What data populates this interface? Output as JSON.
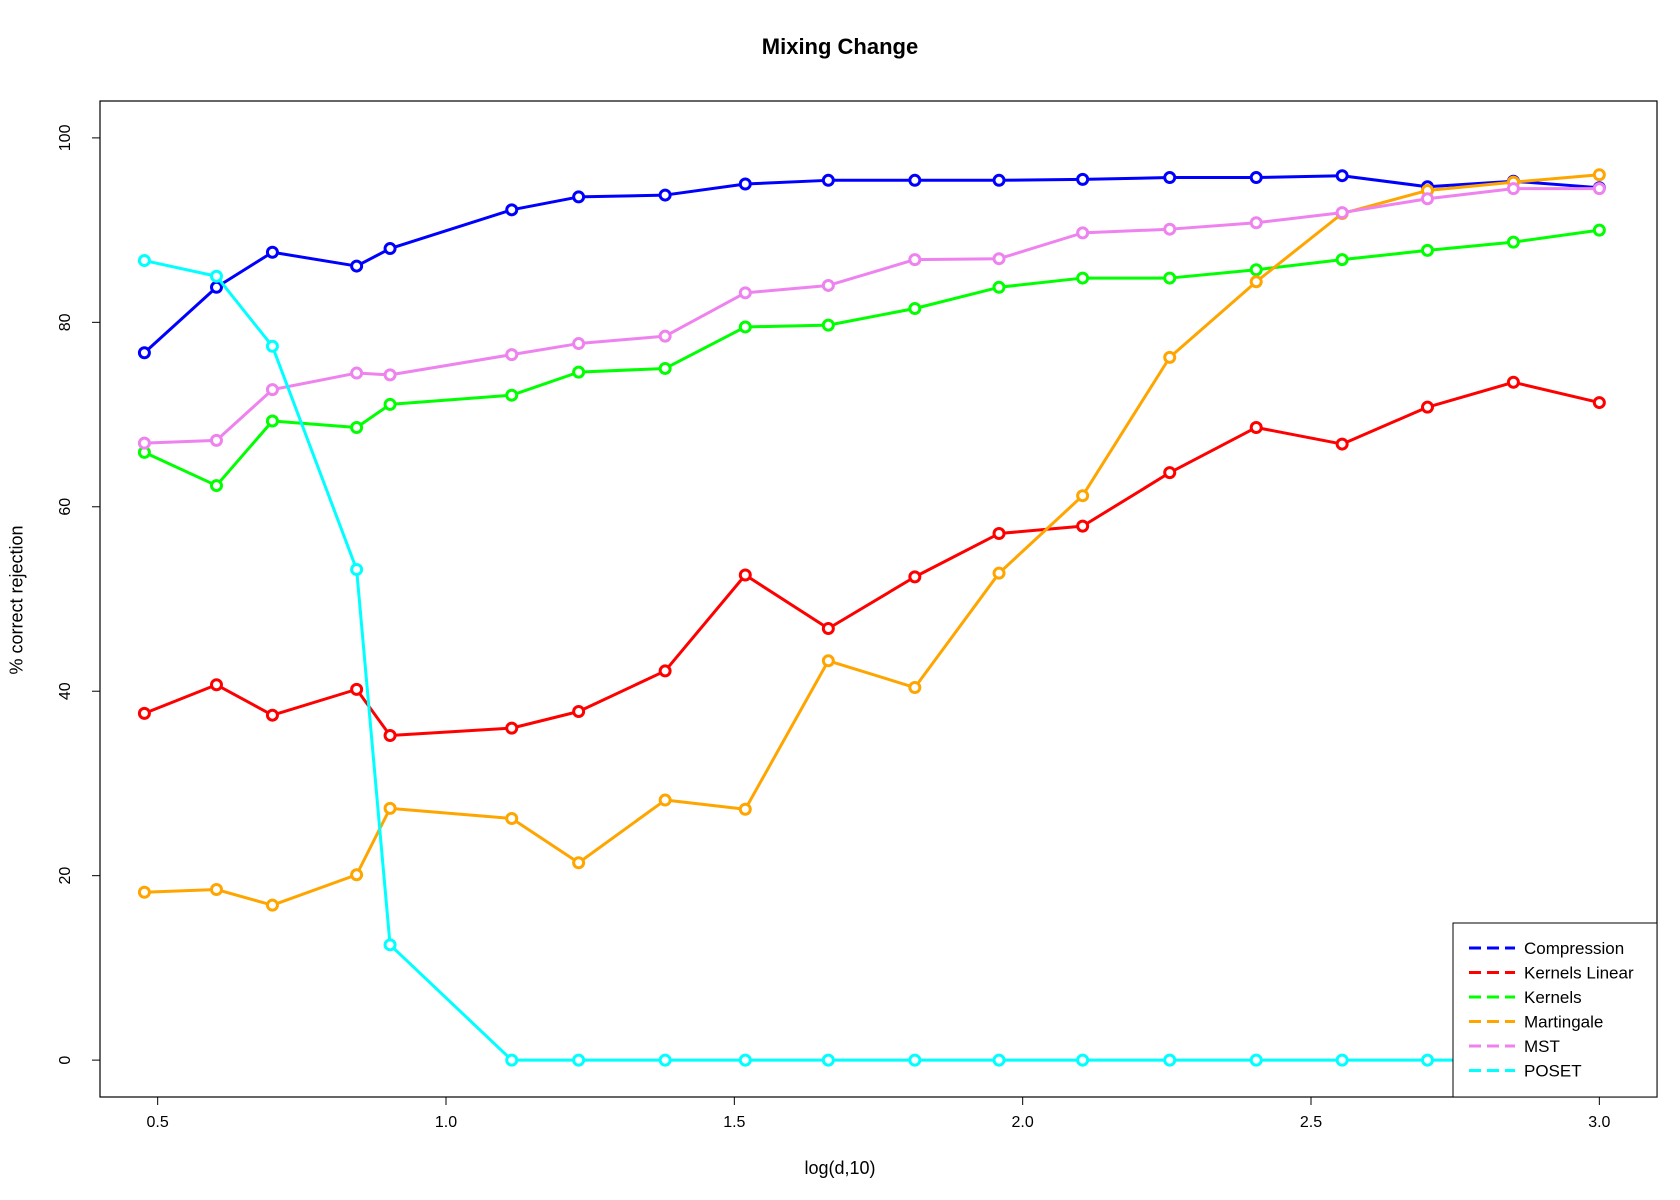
{
  "chart_data": {
    "type": "line",
    "title": "Mixing Change",
    "xlabel": "log(d,10)",
    "ylabel": "% correct rejection",
    "xlim": [
      0.4,
      3.1
    ],
    "ylim": [
      -4,
      104
    ],
    "x_ticks": [
      0.5,
      1.0,
      1.5,
      2.0,
      2.5,
      3.0
    ],
    "x_tick_labels": [
      "0.5",
      "1.0",
      "1.5",
      "2.0",
      "2.5",
      "3.0"
    ],
    "y_ticks": [
      0,
      20,
      40,
      60,
      80,
      100
    ],
    "y_tick_labels": [
      "0",
      "20",
      "40",
      "60",
      "80",
      "100"
    ],
    "grid": false,
    "legend_position": "bottom-right",
    "x": [
      0.477,
      0.602,
      0.699,
      0.845,
      0.903,
      1.114,
      1.23,
      1.38,
      1.519,
      1.663,
      1.813,
      1.959,
      2.104,
      2.255,
      2.405,
      2.554,
      2.702,
      2.851,
      3.0
    ],
    "series": [
      {
        "name": "Compression",
        "color": "#0000ff",
        "values": [
          76.7,
          83.8,
          87.6,
          86.1,
          88.0,
          92.2,
          93.6,
          93.8,
          95.0,
          95.4,
          95.4,
          95.4,
          95.5,
          95.7,
          95.7,
          95.9,
          94.7,
          95.3,
          94.6
        ]
      },
      {
        "name": "Kernels Linear",
        "color": "#ff0000",
        "values": [
          37.6,
          40.7,
          37.4,
          40.2,
          35.2,
          36.0,
          37.8,
          42.2,
          52.6,
          46.8,
          52.4,
          57.1,
          57.9,
          63.7,
          68.6,
          66.8,
          70.8,
          73.5,
          71.3
        ]
      },
      {
        "name": "Kernels",
        "color": "#00ff00",
        "values": [
          65.9,
          62.3,
          69.3,
          68.6,
          71.1,
          72.1,
          74.6,
          75.0,
          79.5,
          79.7,
          81.5,
          83.8,
          84.8,
          84.8,
          85.7,
          86.8,
          87.8,
          88.7,
          90.0
        ]
      },
      {
        "name": "Martingale",
        "color": "#ffa500",
        "values": [
          18.2,
          18.5,
          16.8,
          20.1,
          27.3,
          26.2,
          21.4,
          28.2,
          27.2,
          43.3,
          40.4,
          52.8,
          61.2,
          76.2,
          84.4,
          91.8,
          94.3,
          95.2,
          96.0
        ]
      },
      {
        "name": "MST",
        "color": "#ee82ee",
        "values": [
          66.9,
          67.2,
          72.7,
          74.5,
          74.3,
          76.5,
          77.7,
          78.5,
          83.2,
          84.0,
          86.8,
          86.9,
          89.7,
          90.1,
          90.8,
          91.9,
          93.4,
          94.5,
          94.5
        ]
      },
      {
        "name": "POSET",
        "color": "#00ffff",
        "values": [
          86.7,
          85.0,
          77.4,
          53.2,
          12.5,
          0.0,
          0.0,
          0.0,
          0.0,
          0.0,
          0.0,
          0.0,
          0.0,
          0.0,
          0.0,
          0.0,
          0.0,
          0.0,
          0.0
        ]
      }
    ]
  }
}
